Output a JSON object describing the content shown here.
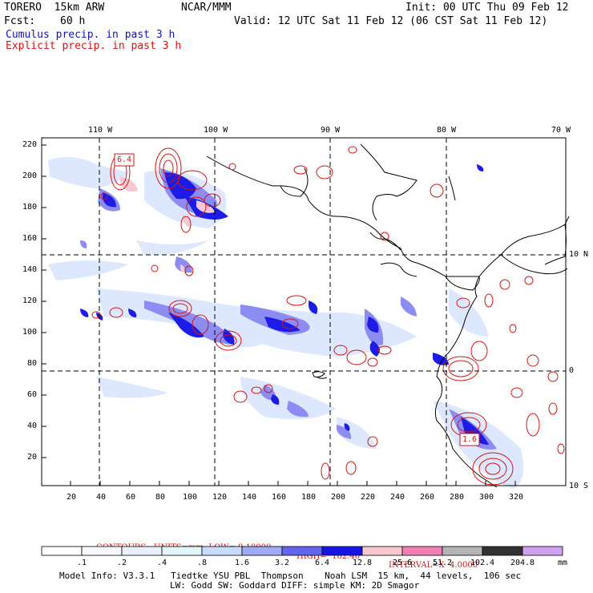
{
  "header": {
    "model": "TORERO  15km ARW",
    "org": "NCAR/MMM",
    "init": "Init: 00 UTC Thu 09 Feb 12",
    "fcst_label": "Fcst:",
    "fcst_value": "60 h",
    "valid": "Valid: 12 UTC Sat 11 Feb 12 (06 CST Sat 11 Feb 12)",
    "line_cumulus": "Cumulus precip. in past 3 h",
    "line_explicit": "Explicit precip. in past 3 h"
  },
  "map": {
    "top_lon_labels": [
      "110 W",
      "100 W",
      "90 W",
      "80 W",
      "70 W"
    ],
    "right_lat_labels": [
      "10 N",
      "0",
      "10 S"
    ],
    "left_ticks": [
      "220",
      "200",
      "180",
      "160",
      "140",
      "120",
      "100",
      "80",
      "60",
      "40",
      "20"
    ],
    "bottom_ticks": [
      "20",
      "40",
      "60",
      "80",
      "100",
      "120",
      "140",
      "160",
      "180",
      "200",
      "220",
      "240",
      "260",
      "280",
      "300",
      "320"
    ],
    "box_labels": [
      "6.4",
      "1.6"
    ],
    "colors": {
      "cumulus_light": "#c8d8ff",
      "cumulus_mid": "#6464f0",
      "cumulus_dark": "#1414e6",
      "explicit_contour": "#d21414",
      "pink_fill": "#f5c8d2"
    }
  },
  "contours": {
    "units": "CONTOURS:  UNITS=mm  LOW= 0.10000",
    "high": "HIGH=  102.40",
    "interval": "INTERVAL=X  4.0000"
  },
  "legend": {
    "labels": [
      ".1",
      ".2",
      ".4",
      ".8",
      "1.6",
      "3.2",
      "6.4",
      "12.8",
      "25.6",
      "51.2",
      "102.4",
      "204.8"
    ],
    "colors": [
      "#ffffff",
      "#f6f9ff",
      "#eaf0ff",
      "#e2f6fb",
      "#c8dcff",
      "#a0aaf5",
      "#6464ee",
      "#1414e8",
      "#f7c8cd",
      "#f080b4",
      "#b4b4b4",
      "#323232",
      "#d2a0f0"
    ],
    "unit": "mm"
  },
  "footer": {
    "line1": "Model Info: V3.3.1   Tiedtke YSU PBL  Thompson    Noah LSM  15 km,  44 levels,  106 sec",
    "line2": "LW: Godd SW: Goddard DIFF: simple KM: 2D Smagor"
  }
}
